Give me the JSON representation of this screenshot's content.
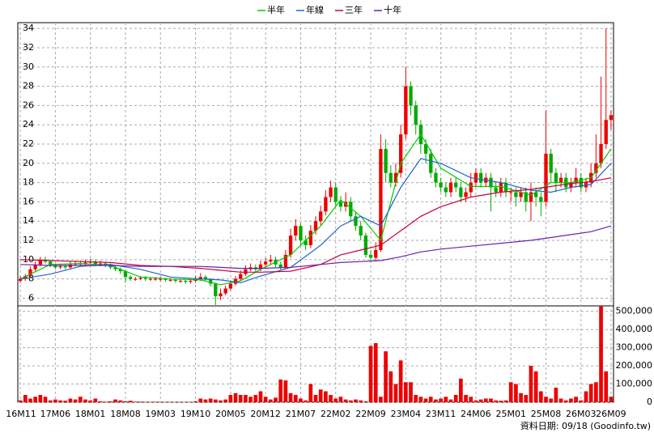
{
  "chart_data": {
    "type": "candlestick",
    "categories": [
      "16M11",
      null,
      null,
      null,
      null,
      null,
      null,
      "17M06",
      null,
      null,
      null,
      null,
      null,
      null,
      "18M01",
      null,
      null,
      null,
      null,
      null,
      null,
      "18M08",
      null,
      null,
      null,
      null,
      null,
      null,
      "19M03",
      null,
      null,
      null,
      null,
      null,
      null,
      "19M10",
      null,
      null,
      null,
      null,
      null,
      null,
      "20M05",
      null,
      null,
      null,
      null,
      null,
      null,
      "20M12",
      null,
      null,
      null,
      null,
      null,
      null,
      "21M07",
      null,
      null,
      null,
      null,
      null,
      null,
      "22M02",
      null,
      null,
      null,
      null,
      null,
      null,
      "22M09",
      null,
      null,
      null,
      null,
      null,
      null,
      "23M04",
      null,
      null,
      null,
      null,
      null,
      null,
      "23M11",
      null,
      null,
      null,
      null,
      null,
      null,
      "24M06",
      null,
      null,
      null,
      null,
      null,
      null,
      "25M01",
      null,
      null,
      null,
      null,
      null,
      null,
      "25M08",
      null,
      null,
      null,
      null,
      null,
      null,
      "26M03",
      null,
      null,
      null,
      null,
      null,
      "26M09"
    ],
    "open": [
      7.8,
      8.0,
      8.3,
      9.0,
      9.5,
      10.0,
      9.8,
      9.4,
      9.2,
      9.3,
      9.2,
      9.5,
      9.6,
      9.6,
      9.7,
      9.8,
      9.5,
      9.6,
      9.4,
      9.2,
      9.0,
      8.8,
      8.2,
      8.0,
      8.0,
      8.1,
      8.0,
      8.0,
      8.0,
      8.0,
      7.9,
      7.9,
      7.8,
      7.8,
      7.7,
      7.8,
      8.0,
      8.2,
      8.0,
      7.5,
      6.2,
      6.5,
      7.0,
      7.5,
      8.0,
      8.5,
      9.0,
      9.2,
      9.0,
      9.5,
      9.8,
      10.0,
      9.5,
      9.2,
      10.5,
      12.5,
      13.5,
      12.0,
      11.5,
      13.0,
      14.0,
      15.0,
      16.5,
      17.5,
      16.0,
      15.5,
      16.0,
      14.5,
      13.5,
      12.5,
      10.5,
      10.2,
      11.0,
      21.5,
      19.0,
      18.0,
      19.0,
      23.0,
      28.0,
      26.0,
      24.0,
      22.0,
      21.0,
      19.0,
      18.0,
      17.5,
      17.0,
      18.0,
      17.5,
      16.5,
      17.0,
      18.0,
      19.0,
      18.0,
      18.5,
      17.5,
      17.0,
      18.0,
      17.0,
      17.0,
      16.5,
      17.0,
      16.0,
      17.0,
      16.5,
      16.0,
      21.0,
      19.0,
      18.0,
      18.5,
      17.5,
      18.0,
      18.5,
      17.5,
      18.0,
      19.0,
      20.0,
      22.0,
      24.5
    ],
    "high": [
      8.3,
      8.5,
      9.3,
      9.8,
      10.3,
      10.3,
      10.0,
      9.6,
      9.5,
      9.5,
      9.8,
      9.9,
      9.9,
      10.0,
      10.1,
      10.0,
      9.9,
      9.8,
      9.6,
      9.4,
      9.2,
      9.0,
      8.4,
      8.2,
      8.3,
      8.3,
      8.2,
      8.2,
      8.2,
      8.1,
      8.1,
      8.0,
      8.0,
      7.9,
      8.0,
      8.3,
      8.6,
      8.4,
      8.1,
      7.6,
      7.0,
      7.3,
      7.8,
      8.3,
      8.9,
      9.4,
      9.6,
      9.5,
      9.9,
      10.2,
      10.5,
      10.3,
      9.8,
      11.0,
      13.2,
      14.2,
      13.8,
      12.5,
      13.6,
      14.5,
      15.6,
      17.2,
      18.2,
      18.0,
      16.6,
      17.0,
      16.5,
      15.0,
      14.0,
      12.8,
      11.0,
      11.8,
      23.0,
      22.5,
      19.8,
      20.0,
      24.0,
      30.0,
      28.5,
      26.5,
      24.5,
      22.5,
      21.5,
      19.5,
      18.5,
      18.0,
      18.5,
      18.6,
      18.0,
      17.5,
      19.0,
      19.5,
      19.5,
      19.0,
      19.0,
      18.0,
      18.5,
      18.5,
      17.5,
      17.5,
      17.5,
      17.5,
      18.0,
      17.5,
      17.0,
      25.5,
      21.5,
      19.5,
      19.0,
      19.0,
      18.5,
      19.5,
      19.0,
      18.5,
      20.0,
      23.0,
      29.0,
      34.0,
      25.5
    ],
    "low": [
      7.6,
      7.8,
      8.1,
      8.8,
      9.3,
      9.6,
      9.2,
      9.0,
      9.0,
      9.0,
      9.0,
      9.3,
      9.4,
      9.4,
      9.5,
      9.3,
      9.3,
      9.2,
      9.0,
      8.8,
      8.5,
      7.6,
      7.8,
      7.8,
      7.9,
      7.8,
      7.8,
      7.8,
      7.8,
      7.7,
      7.7,
      7.6,
      7.6,
      7.5,
      7.5,
      7.6,
      7.8,
      7.8,
      7.2,
      5.3,
      5.8,
      6.3,
      6.8,
      7.3,
      7.8,
      8.3,
      8.8,
      8.7,
      8.8,
      9.2,
      9.5,
      9.2,
      8.9,
      9.0,
      10.2,
      12.0,
      11.5,
      11.0,
      11.2,
      12.6,
      13.6,
      14.6,
      16.0,
      15.5,
      15.0,
      15.0,
      14.0,
      13.0,
      12.0,
      10.2,
      9.8,
      9.8,
      10.8,
      18.0,
      17.5,
      17.6,
      18.5,
      22.5,
      25.0,
      23.0,
      21.0,
      20.0,
      18.5,
      17.5,
      17.0,
      16.5,
      16.5,
      17.0,
      16.0,
      16.0,
      16.5,
      17.5,
      17.5,
      17.5,
      15.0,
      16.5,
      16.5,
      16.5,
      16.0,
      15.5,
      16.0,
      15.0,
      14.0,
      15.5,
      14.5,
      15.5,
      18.0,
      17.0,
      17.5,
      17.0,
      17.0,
      17.5,
      17.0,
      17.0,
      17.5,
      18.5,
      19.5,
      21.5,
      23.5
    ],
    "close": [
      8.0,
      8.3,
      9.0,
      9.5,
      10.0,
      9.8,
      9.4,
      9.2,
      9.3,
      9.2,
      9.5,
      9.6,
      9.6,
      9.7,
      9.8,
      9.5,
      9.6,
      9.4,
      9.2,
      9.0,
      8.8,
      8.2,
      8.0,
      8.0,
      8.1,
      8.0,
      8.0,
      8.0,
      8.0,
      7.9,
      7.9,
      7.8,
      7.8,
      7.7,
      7.8,
      8.0,
      8.2,
      8.0,
      7.5,
      6.2,
      6.5,
      7.0,
      7.5,
      8.0,
      8.5,
      9.0,
      9.2,
      9.0,
      9.5,
      9.8,
      10.0,
      9.5,
      9.2,
      10.5,
      12.5,
      13.5,
      12.0,
      11.5,
      13.0,
      14.0,
      15.0,
      16.5,
      17.5,
      16.0,
      15.5,
      16.0,
      14.5,
      13.5,
      12.5,
      10.5,
      10.2,
      11.0,
      21.5,
      19.0,
      18.0,
      19.0,
      23.0,
      28.0,
      26.0,
      24.0,
      22.0,
      21.0,
      19.0,
      18.0,
      17.5,
      17.0,
      18.0,
      17.5,
      16.5,
      17.0,
      18.0,
      19.0,
      18.0,
      18.5,
      17.5,
      17.0,
      18.0,
      17.0,
      17.0,
      16.5,
      17.0,
      16.0,
      17.0,
      16.5,
      16.0,
      21.0,
      19.0,
      18.0,
      18.5,
      17.5,
      18.0,
      18.5,
      17.5,
      18.0,
      19.0,
      20.0,
      22.0,
      24.5,
      25.0
    ],
    "up_color": "#ee0000",
    "down_color": "#00aa00",
    "ylim": [
      5.2,
      34.6
    ],
    "yticks": [
      6,
      8,
      10,
      12,
      14,
      16,
      18,
      20,
      22,
      24,
      26,
      28,
      30,
      32,
      34
    ],
    "grid": true,
    "moving_averages": [
      {
        "name": "半年",
        "color": "#00cc00",
        "x": [
          0,
          6,
          12,
          18,
          24,
          30,
          36,
          40,
          44,
          48,
          54,
          60,
          64,
          68,
          72,
          76,
          80,
          84,
          90,
          96,
          102,
          106,
          110,
          114,
          118
        ],
        "values": [
          8,
          9.5,
          9.6,
          9.4,
          8.2,
          8.0,
          7.9,
          7.4,
          7.8,
          9.0,
          10.5,
          13.5,
          16.2,
          14.5,
          12.0,
          20,
          23,
          19.5,
          17.6,
          17.6,
          16.7,
          18,
          18,
          18.5,
          21.5
        ]
      },
      {
        "name": "年線",
        "color": "#1e64d2",
        "x": [
          0,
          6,
          12,
          18,
          24,
          30,
          36,
          40,
          44,
          48,
          54,
          60,
          64,
          68,
          72,
          76,
          80,
          84,
          90,
          96,
          102,
          106,
          110,
          114,
          118
        ],
        "values": [
          8,
          8.5,
          9.3,
          9.5,
          9.0,
          8.2,
          8.0,
          7.9,
          7.6,
          8.3,
          9.2,
          11.5,
          13.5,
          14.5,
          13.5,
          17.5,
          20.5,
          20.0,
          18.5,
          18.0,
          17.2,
          17.0,
          17.5,
          17.8,
          20
        ]
      },
      {
        "name": "三年",
        "color": "#c8003c",
        "x": [
          0,
          6,
          12,
          18,
          24,
          30,
          36,
          40,
          44,
          48,
          54,
          60,
          64,
          68,
          72,
          76,
          80,
          84,
          90,
          96,
          102,
          106,
          110,
          114,
          118
        ],
        "values": [
          10,
          9.9,
          9.8,
          9.7,
          9.4,
          9.3,
          9.1,
          8.9,
          8.7,
          8.7,
          8.8,
          9.5,
          10.5,
          11.0,
          11.5,
          13.0,
          14.5,
          15.5,
          16.5,
          17.0,
          17.3,
          17.6,
          17.9,
          18.1,
          18.5
        ]
      },
      {
        "name": "十年",
        "color": "#6a1fb0",
        "x": [
          0,
          6,
          12,
          18,
          24,
          30,
          36,
          40,
          44,
          48,
          54,
          60,
          64,
          68,
          72,
          76,
          80,
          84,
          90,
          96,
          102,
          106,
          110,
          114,
          118
        ],
        "values": [
          9.5,
          9.4,
          9.4,
          9.4,
          9.3,
          9.3,
          9.3,
          9.2,
          9.1,
          9.1,
          9.2,
          9.5,
          9.7,
          9.8,
          9.9,
          10.3,
          10.8,
          11.1,
          11.4,
          11.7,
          12.0,
          12.3,
          12.6,
          12.9,
          13.5
        ]
      }
    ],
    "volume": {
      "color": "#ee0000",
      "values": [
        10000,
        40000,
        20000,
        30000,
        40000,
        30000,
        10000,
        15000,
        10000,
        8000,
        20000,
        15000,
        30000,
        15000,
        10000,
        20000,
        5000,
        3000,
        5000,
        15000,
        10000,
        5000,
        8000,
        3000,
        3000,
        2000,
        2000,
        2000,
        2000,
        1000,
        2000,
        1000,
        2000,
        1000,
        2000,
        5000,
        20000,
        15000,
        20000,
        15000,
        10000,
        15000,
        40000,
        50000,
        40000,
        40000,
        30000,
        40000,
        60000,
        30000,
        15000,
        25000,
        125000,
        120000,
        50000,
        40000,
        20000,
        10000,
        100000,
        40000,
        70000,
        60000,
        40000,
        20000,
        30000,
        15000,
        10000,
        15000,
        10000,
        5000,
        310000,
        325000,
        30000,
        280000,
        170000,
        100000,
        230000,
        110000,
        110000,
        40000,
        30000,
        20000,
        30000,
        15000,
        20000,
        30000,
        15000,
        40000,
        130000,
        40000,
        30000,
        10000,
        15000,
        20000,
        20000,
        10000,
        8000,
        10000,
        110000,
        100000,
        50000,
        40000,
        200000,
        170000,
        60000,
        30000,
        20000,
        80000,
        20000,
        10000,
        20000,
        30000,
        10000,
        60000,
        100000,
        110000,
        530000,
        170000,
        30000
      ],
      "y2lim": [
        0,
        530000
      ],
      "y2ticks": [
        0,
        {
          "value": 100000,
          "label": "100,000"
        },
        {
          "value": 200000,
          "label": "200,000"
        },
        {
          "value": 300000,
          "label": "300,000"
        },
        {
          "value": 400000,
          "label": "400,000"
        },
        {
          "value": 500000,
          "label": "500,000"
        }
      ]
    },
    "footer": "資料日期: 09/18 (Goodinfo.tw)"
  }
}
